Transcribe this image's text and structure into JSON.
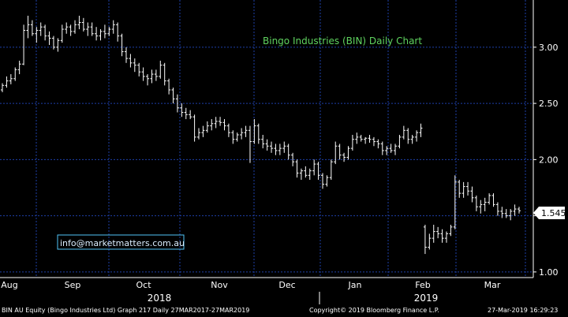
{
  "chart_data": {
    "type": "bar",
    "title": "Bingo Industries (BIN) Daily Chart",
    "watermark": "info@marketmatters.com.au",
    "current_price_label": "1.545",
    "y_ticks": [
      "1.00",
      "1.50",
      "2.00",
      "2.50",
      "3.00"
    ],
    "ylim": [
      0.95,
      3.42
    ],
    "month_labels": [
      "Aug",
      "Sep",
      "Oct",
      "Nov",
      "Dec",
      "Jan",
      "Feb",
      "Mar"
    ],
    "year_labels": [
      "2018",
      "2019"
    ],
    "grid": true,
    "colors": {
      "background": "#000000",
      "grid": "#1e3fa8",
      "bars": "#ffffff",
      "title": "#5fd35f",
      "watermark_text": "#dbeeff",
      "watermark_border": "#4fc3f7",
      "price_box": "#ffffff"
    },
    "series": [
      {
        "style": "ohlc",
        "values": [
          [
            2.62,
            2.68,
            2.6,
            2.66
          ],
          [
            2.66,
            2.74,
            2.64,
            2.7
          ],
          [
            2.7,
            2.76,
            2.67,
            2.72
          ],
          [
            2.72,
            2.82,
            2.7,
            2.8
          ],
          [
            2.8,
            2.88,
            2.76,
            2.85
          ],
          [
            2.85,
            3.2,
            2.84,
            3.15
          ],
          [
            3.15,
            3.28,
            3.08,
            3.2
          ],
          [
            3.2,
            3.24,
            3.1,
            3.12
          ],
          [
            3.12,
            3.18,
            3.04,
            3.15
          ],
          [
            3.15,
            3.22,
            3.1,
            3.18
          ],
          [
            3.18,
            3.2,
            3.06,
            3.1
          ],
          [
            3.1,
            3.14,
            3.02,
            3.08
          ],
          [
            3.08,
            3.1,
            2.98,
            3.0
          ],
          [
            3.0,
            3.08,
            2.96,
            3.06
          ],
          [
            3.06,
            3.2,
            3.04,
            3.16
          ],
          [
            3.16,
            3.22,
            3.12,
            3.18
          ],
          [
            3.18,
            3.2,
            3.1,
            3.14
          ],
          [
            3.14,
            3.24,
            3.12,
            3.2
          ],
          [
            3.2,
            3.28,
            3.16,
            3.22
          ],
          [
            3.22,
            3.26,
            3.14,
            3.16
          ],
          [
            3.16,
            3.22,
            3.1,
            3.18
          ],
          [
            3.18,
            3.22,
            3.1,
            3.12
          ],
          [
            3.12,
            3.18,
            3.06,
            3.1
          ],
          [
            3.1,
            3.16,
            3.06,
            3.14
          ],
          [
            3.14,
            3.2,
            3.08,
            3.12
          ],
          [
            3.12,
            3.18,
            3.1,
            3.16
          ],
          [
            3.16,
            3.24,
            3.12,
            3.2
          ],
          [
            3.2,
            3.22,
            3.05,
            3.1
          ],
          [
            3.1,
            3.12,
            2.92,
            2.96
          ],
          [
            2.96,
            3.0,
            2.86,
            2.9
          ],
          [
            2.9,
            2.94,
            2.82,
            2.86
          ],
          [
            2.86,
            2.9,
            2.78,
            2.84
          ],
          [
            2.84,
            2.86,
            2.74,
            2.78
          ],
          [
            2.78,
            2.82,
            2.7,
            2.74
          ],
          [
            2.74,
            2.76,
            2.66,
            2.72
          ],
          [
            2.72,
            2.8,
            2.68,
            2.76
          ],
          [
            2.76,
            2.8,
            2.7,
            2.74
          ],
          [
            2.74,
            2.88,
            2.72,
            2.84
          ],
          [
            2.84,
            2.86,
            2.66,
            2.7
          ],
          [
            2.7,
            2.72,
            2.58,
            2.62
          ],
          [
            2.62,
            2.64,
            2.5,
            2.54
          ],
          [
            2.54,
            2.58,
            2.42,
            2.46
          ],
          [
            2.46,
            2.5,
            2.38,
            2.42
          ],
          [
            2.42,
            2.46,
            2.36,
            2.4
          ],
          [
            2.4,
            2.44,
            2.36,
            2.38
          ],
          [
            2.38,
            2.4,
            2.16,
            2.2
          ],
          [
            2.2,
            2.28,
            2.18,
            2.24
          ],
          [
            2.24,
            2.3,
            2.2,
            2.26
          ],
          [
            2.26,
            2.34,
            2.24,
            2.3
          ],
          [
            2.3,
            2.36,
            2.26,
            2.32
          ],
          [
            2.32,
            2.38,
            2.28,
            2.34
          ],
          [
            2.34,
            2.38,
            2.3,
            2.33
          ],
          [
            2.33,
            2.36,
            2.26,
            2.3
          ],
          [
            2.3,
            2.32,
            2.2,
            2.24
          ],
          [
            2.24,
            2.26,
            2.14,
            2.18
          ],
          [
            2.18,
            2.24,
            2.16,
            2.22
          ],
          [
            2.22,
            2.28,
            2.18,
            2.24
          ],
          [
            2.24,
            2.3,
            2.2,
            2.26
          ],
          [
            2.26,
            2.3,
            1.97,
            2.16
          ],
          [
            2.16,
            2.36,
            2.14,
            2.3
          ],
          [
            2.3,
            2.32,
            2.14,
            2.18
          ],
          [
            2.18,
            2.22,
            2.1,
            2.14
          ],
          [
            2.14,
            2.18,
            2.08,
            2.12
          ],
          [
            2.12,
            2.16,
            2.06,
            2.1
          ],
          [
            2.1,
            2.14,
            2.04,
            2.08
          ],
          [
            2.08,
            2.14,
            2.04,
            2.1
          ],
          [
            2.1,
            2.16,
            2.06,
            2.12
          ],
          [
            2.12,
            2.14,
            2.0,
            2.04
          ],
          [
            2.04,
            2.06,
            1.94,
            1.98
          ],
          [
            1.98,
            2.0,
            1.84,
            1.88
          ],
          [
            1.88,
            1.92,
            1.82,
            1.9
          ],
          [
            1.9,
            1.94,
            1.84,
            1.86
          ],
          [
            1.86,
            1.92,
            1.82,
            1.9
          ],
          [
            1.9,
            2.0,
            1.86,
            1.96
          ],
          [
            1.96,
            1.98,
            1.82,
            1.86
          ],
          [
            1.86,
            1.88,
            1.74,
            1.78
          ],
          [
            1.78,
            1.86,
            1.76,
            1.84
          ],
          [
            1.84,
            2.0,
            1.82,
            1.98
          ],
          [
            1.98,
            2.16,
            1.96,
            2.12
          ],
          [
            2.12,
            2.14,
            2.0,
            2.04
          ],
          [
            2.04,
            2.06,
            1.98,
            2.02
          ],
          [
            2.02,
            2.12,
            2.0,
            2.1
          ],
          [
            2.1,
            2.22,
            2.08,
            2.18
          ],
          [
            2.18,
            2.24,
            2.14,
            2.2
          ],
          [
            2.2,
            2.22,
            2.16,
            2.18
          ],
          [
            2.18,
            2.2,
            2.14,
            2.19
          ],
          [
            2.19,
            2.22,
            2.15,
            2.18
          ],
          [
            2.18,
            2.2,
            2.12,
            2.16
          ],
          [
            2.16,
            2.18,
            2.1,
            2.14
          ],
          [
            2.14,
            2.16,
            2.04,
            2.08
          ],
          [
            2.08,
            2.12,
            2.04,
            2.1
          ],
          [
            2.1,
            2.14,
            2.06,
            2.08
          ],
          [
            2.08,
            2.14,
            2.04,
            2.12
          ],
          [
            2.12,
            2.22,
            2.1,
            2.2
          ],
          [
            2.2,
            2.3,
            2.18,
            2.26
          ],
          [
            2.26,
            2.28,
            2.14,
            2.18
          ],
          [
            2.18,
            2.22,
            2.14,
            2.2
          ],
          [
            2.2,
            2.26,
            2.16,
            2.24
          ],
          [
            2.24,
            2.32,
            2.2,
            2.28
          ],
          [
            1.4,
            1.42,
            1.16,
            1.22
          ],
          [
            1.22,
            1.34,
            1.2,
            1.3
          ],
          [
            1.3,
            1.42,
            1.26,
            1.36
          ],
          [
            1.36,
            1.4,
            1.3,
            1.34
          ],
          [
            1.34,
            1.38,
            1.26,
            1.3
          ],
          [
            1.3,
            1.36,
            1.26,
            1.34
          ],
          [
            1.34,
            1.42,
            1.32,
            1.4
          ],
          [
            1.4,
            1.86,
            1.38,
            1.8
          ],
          [
            1.8,
            1.82,
            1.66,
            1.7
          ],
          [
            1.7,
            1.8,
            1.66,
            1.76
          ],
          [
            1.76,
            1.8,
            1.68,
            1.72
          ],
          [
            1.72,
            1.76,
            1.62,
            1.66
          ],
          [
            1.66,
            1.68,
            1.54,
            1.58
          ],
          [
            1.58,
            1.64,
            1.52,
            1.6
          ],
          [
            1.6,
            1.66,
            1.54,
            1.62
          ],
          [
            1.62,
            1.7,
            1.6,
            1.68
          ],
          [
            1.68,
            1.7,
            1.58,
            1.6
          ],
          [
            1.6,
            1.62,
            1.5,
            1.54
          ],
          [
            1.54,
            1.58,
            1.48,
            1.52
          ],
          [
            1.52,
            1.56,
            1.48,
            1.5
          ],
          [
            1.5,
            1.56,
            1.46,
            1.54
          ],
          [
            1.54,
            1.6,
            1.5,
            1.56
          ],
          [
            1.56,
            1.58,
            1.52,
            1.545
          ]
        ]
      }
    ],
    "footer": {
      "left": "BIN AU Equity (Bingo Industries Ltd) Graph 217  Daily 27MAR2017-27MAR2019",
      "center": "Copyright© 2019 Bloomberg Finance L.P.",
      "right": "27-Mar-2019 16:29:23"
    }
  }
}
